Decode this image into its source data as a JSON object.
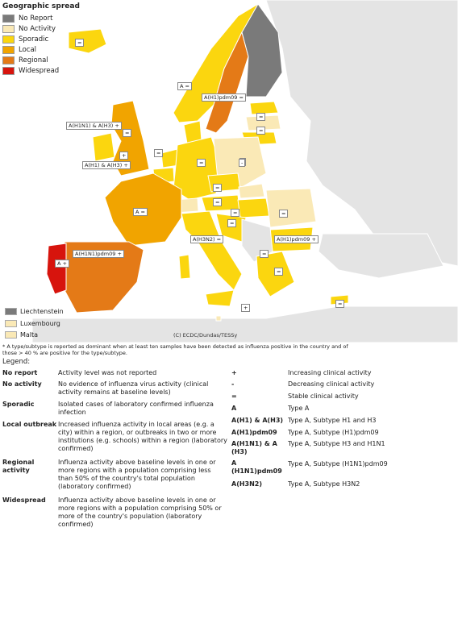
{
  "map_legend": {
    "title": "Geographic spread",
    "items": [
      {
        "label": "No Report",
        "color": "#7a7a7a"
      },
      {
        "label": "No Activity",
        "color": "#fae9b6"
      },
      {
        "label": "Sporadic",
        "color": "#fbd60f"
      },
      {
        "label": "Local",
        "color": "#f1a400"
      },
      {
        "label": "Regional",
        "color": "#e47a17"
      },
      {
        "label": "Widespread",
        "color": "#d7140d"
      }
    ]
  },
  "small_states": [
    {
      "label": "Liechtenstein",
      "color": "#7a7a7a"
    },
    {
      "label": "Luxembourg",
      "color": "#fae9b6"
    },
    {
      "label": "Malta",
      "color": "#fae9b6"
    }
  ],
  "map_badges": [
    "=",
    "A =",
    "A(H1)pdm09 =",
    "A(H1N1) & A(H3) +",
    "=",
    "=",
    "+",
    "A(H1) & A(H3) +",
    "=",
    "=",
    "-",
    "=",
    "A =",
    "=",
    "=",
    "=",
    "A(H3N2) =",
    "=",
    "A(H1)pdm09 +",
    "A(H1N1)pdm09 +",
    "A +",
    "=",
    "=",
    "+",
    "-",
    "=",
    "="
  ],
  "copyright": "(C) ECDC/Dundas/TESSy",
  "footnote": "* A type/subtype is reported as dominant when at least ten samples have been detected as influenza positive in the country and of those > 40 %  are positive for the type/subtype.",
  "legend_label": "Legend:",
  "activity_definitions": [
    {
      "term": "No report",
      "desc": "Activity level was not reported"
    },
    {
      "term": "No activity",
      "desc": "No evidence of influenza virus activity (clinical activity remains at baseline levels)"
    },
    {
      "term": "Sporadic",
      "desc": "Isolated cases of laboratory confirmed influenza infection"
    },
    {
      "term": "Local outbreak",
      "desc": "Increased influenza activity in local areas (e.g. a city) within a region, or outbreaks in two or more institutions (e.g. schools) within a region (laboratory confirmed)"
    },
    {
      "term": "Regional activity",
      "desc": "Influenza activity above baseline levels in one or more regions with a population comprising less than 50% of the country's total population (laboratory confirmed)"
    },
    {
      "term": "Widespread",
      "desc": "Influenza activity above baseline levels in one or more regions with a population comprising 50% or more of the country's population (laboratory confirmed)"
    }
  ],
  "symbol_definitions": [
    {
      "term": "+",
      "desc": "Increasing clinical activity"
    },
    {
      "term": "-",
      "desc": "Decreasing clinical activity"
    },
    {
      "term": "=",
      "desc": "Stable clinical activity"
    },
    {
      "term": "A",
      "desc": "Type A"
    },
    {
      "term": "A(H1) & A(H3)",
      "desc": "Type A, Subtype H1 and H3"
    },
    {
      "term": "A(H1)pdm09",
      "desc": "Type A, Subtype (H1)pdm09"
    },
    {
      "term": "A(H1N1) & A (H3)",
      "desc": "Type A, Subtype H3 and H1N1"
    },
    {
      "term": "A (H1N1)pdm09",
      "desc": "Type A, Subtype (H1N1)pdm09"
    },
    {
      "term": "A(H3N2)",
      "desc": "Type A, Subtype H3N2"
    }
  ]
}
